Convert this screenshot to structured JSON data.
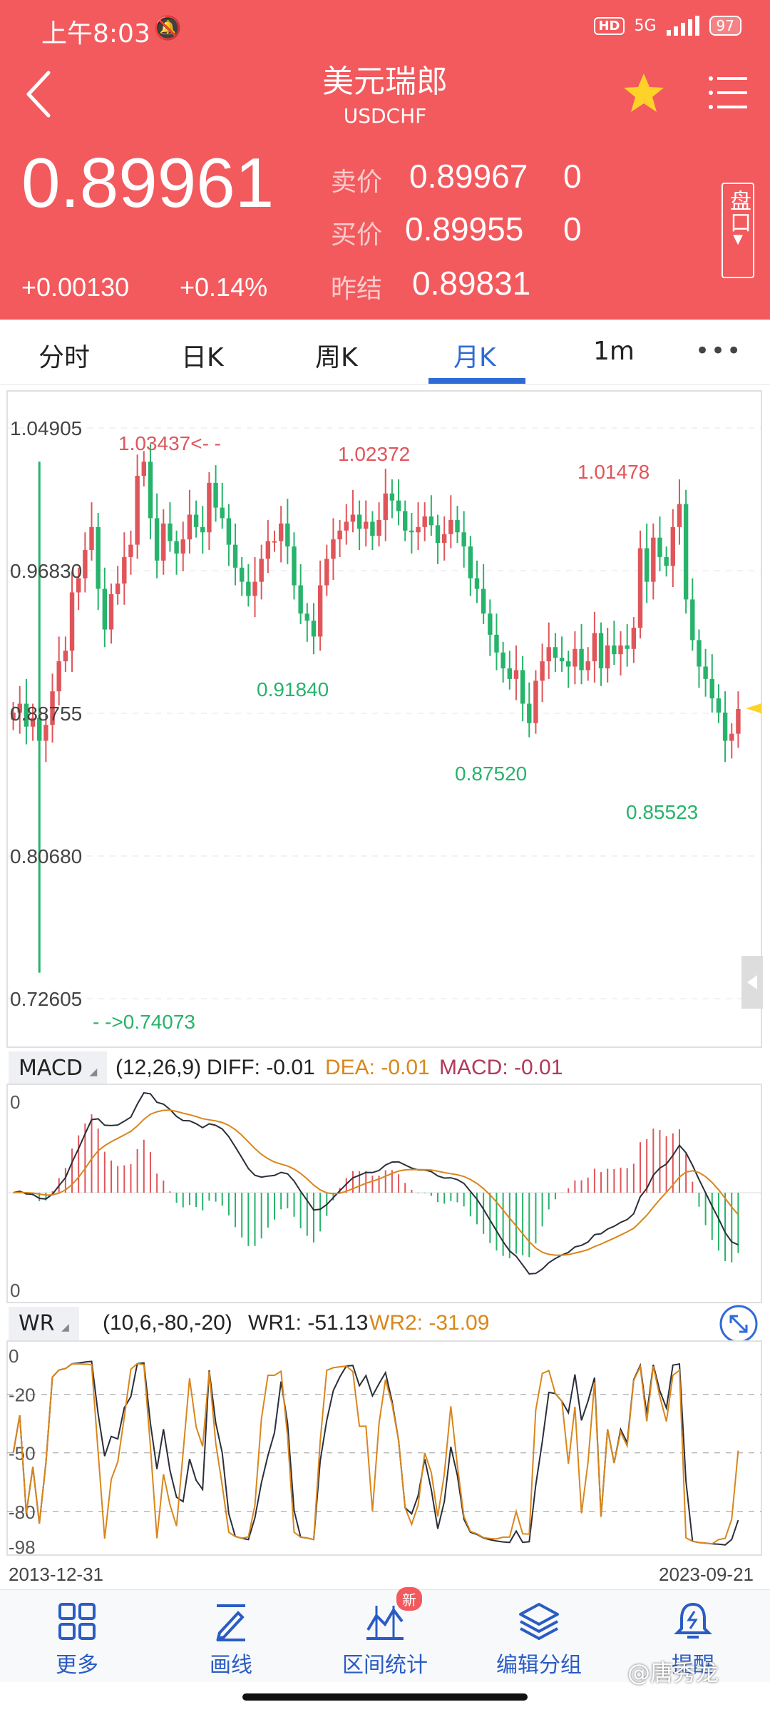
{
  "status_bar": {
    "time": "上午8:03",
    "network": "5G",
    "hd": "HD",
    "battery": "97"
  },
  "header": {
    "title": "美元瑞郎",
    "subtitle": "USDCHF",
    "price": "0.89961",
    "change_abs": "+0.00130",
    "change_pct": "+0.14%",
    "sell_label": "卖价",
    "sell_value": "0.89967",
    "sell_qty": "0",
    "buy_label": "买价",
    "buy_value": "0.89955",
    "buy_qty": "0",
    "prev_label": "昨结",
    "prev_value": "0.89831",
    "pankou_label": "盘口"
  },
  "tabs": [
    {
      "label": "分时",
      "active": false
    },
    {
      "label": "日K",
      "active": false
    },
    {
      "label": "周K",
      "active": false
    },
    {
      "label": "月K",
      "active": true
    },
    {
      "label": "1m",
      "active": false
    }
  ],
  "more_tabs": "•••",
  "colors": {
    "up": "#e0555a",
    "down": "#27b36b",
    "accent": "#2f6bd6",
    "header": "#f25a5e",
    "dea": "#d9861c",
    "macd": "#b03a5a",
    "wr2": "#d9861c"
  },
  "main_chart": {
    "y_ticks": [
      "1.04905",
      "0.96830",
      "0.88755",
      "0.80680",
      "0.72605"
    ],
    "annotations": {
      "high_1": "1.03437<- -",
      "high_2": "1.02372",
      "high_3": "1.01478",
      "low_1": "0.91840",
      "low_2": "0.87520",
      "low_3": "0.85523",
      "low_all": "- ->0.74073"
    }
  },
  "chart_data": {
    "type": "candlestick",
    "symbol": "USDCHF",
    "period": "monthly",
    "x_start": "2013-12-31",
    "x_end": "2023-09-21",
    "y_range": [
      0.72605,
      1.04905
    ],
    "y_ticks": [
      1.04905,
      0.9683,
      0.88755,
      0.8068,
      0.72605
    ],
    "labeled_extremes": [
      {
        "label": "high",
        "value": 1.03437
      },
      {
        "label": "high",
        "value": 1.02372
      },
      {
        "label": "high",
        "value": 1.01478
      },
      {
        "label": "low",
        "value": 0.9184
      },
      {
        "label": "low",
        "value": 0.8752
      },
      {
        "label": "low",
        "value": 0.85523
      },
      {
        "label": "low",
        "value": 0.74073
      }
    ],
    "closes": [
      0.888,
      0.893,
      0.88,
      0.885,
      0.872,
      0.881,
      0.9,
      0.917,
      0.923,
      0.956,
      0.964,
      0.98,
      0.993,
      0.958,
      0.935,
      0.955,
      0.961,
      0.976,
      0.983,
      1.022,
      1.03,
      0.998,
      0.974,
      0.995,
      0.985,
      0.978,
      0.986,
      1.0,
      0.993,
      0.99,
      1.018,
      1.004,
      0.998,
      0.983,
      0.97,
      0.962,
      0.954,
      0.962,
      0.975,
      0.985,
      0.985,
      0.995,
      0.982,
      0.96,
      0.944,
      0.94,
      0.931,
      0.96,
      0.975,
      0.986,
      0.991,
      0.996,
      1.0,
      0.992,
      0.996,
      0.988,
      0.997,
      1.012,
      1.008,
      1.002,
      0.991,
      0.99,
      0.993,
      0.999,
      0.994,
      0.984,
      0.989,
      0.997,
      0.99,
      0.982,
      0.964,
      0.958,
      0.944,
      0.932,
      0.922,
      0.913,
      0.907,
      0.912,
      0.893,
      0.882,
      0.906,
      0.917,
      0.925,
      0.919,
      0.917,
      0.914,
      0.924,
      0.912,
      0.917,
      0.933,
      0.913,
      0.926,
      0.921,
      0.926,
      0.924,
      0.936,
      0.981,
      0.962,
      0.987,
      0.976,
      0.971,
      0.993,
      1.006,
      0.952,
      0.929,
      0.914,
      0.907,
      0.896,
      0.888,
      0.872,
      0.876,
      0.89
    ],
    "indicators": {
      "macd": {
        "params": "(12,26,9)",
        "DIFF": -0.01,
        "DEA": -0.01,
        "MACD": -0.01
      },
      "wr": {
        "params": "(10,6,-80,-20)",
        "WR1": -51.13,
        "WR2": -31.09,
        "y_ticks": [
          0,
          -20,
          -50,
          -80,
          -98
        ]
      }
    }
  },
  "macd_panel": {
    "name": "MACD",
    "params": "(12,26,9)",
    "diff_text": "DIFF: -0.01",
    "dea_text": "DEA: -0.01",
    "macd_text": "MACD: -0.01",
    "y_label_top": "0",
    "y_label_bottom": "0"
  },
  "wr_panel": {
    "name": "WR",
    "params": "(10,6,-80,-20)",
    "wr1_text": "WR1: -51.13",
    "wr2_text": "WR2: -31.09",
    "ticks": [
      "0",
      "-20",
      "-50",
      "-80",
      "-98"
    ]
  },
  "x_axis": {
    "start": "2013-12-31",
    "end": "2023-09-21"
  },
  "bottom_nav": [
    {
      "label": "更多",
      "icon": "grid-icon"
    },
    {
      "label": "画线",
      "icon": "pen-icon"
    },
    {
      "label": "区间统计",
      "icon": "range-chart-icon",
      "badge": "新"
    },
    {
      "label": "编辑分组",
      "icon": "layers-icon"
    },
    {
      "label": "提醒",
      "icon": "alarm-bell-icon"
    }
  ],
  "watermark": "@唐秀龙"
}
